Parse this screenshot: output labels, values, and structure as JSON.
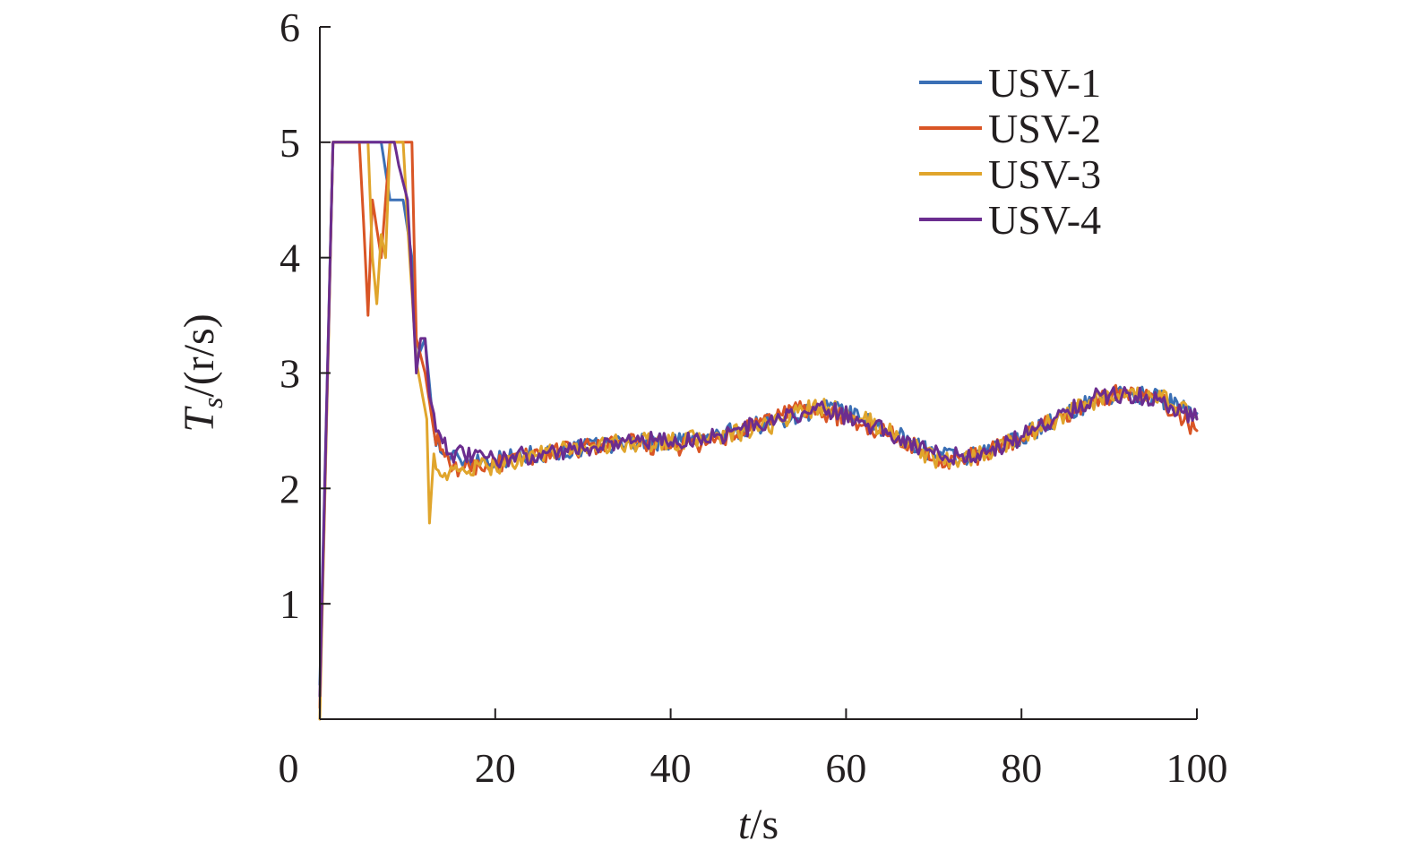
{
  "chart_data": {
    "type": "line",
    "title": "",
    "xlabel": {
      "var": "t",
      "unit": "/s"
    },
    "ylabel": {
      "var": "T",
      "sub": "s",
      "unit": "/(r/s)"
    },
    "xlim": [
      0,
      100
    ],
    "ylim": [
      0,
      6
    ],
    "xticks": [
      0,
      20,
      40,
      60,
      80,
      100
    ],
    "yticks": [
      1,
      2,
      3,
      4,
      5,
      6
    ],
    "x_origin_label": "0",
    "grid": false,
    "legend_position": "top-right",
    "series": [
      {
        "name": "USV-1",
        "color": "#3a6fb5",
        "points": [
          [
            0,
            0.3
          ],
          [
            1.5,
            5
          ],
          [
            7,
            5
          ],
          [
            8,
            4.5
          ],
          [
            9.5,
            4.5
          ],
          [
            10.5,
            4
          ],
          [
            11,
            3.1
          ],
          [
            12,
            3.3
          ],
          [
            13,
            2.5
          ],
          [
            14,
            2.3
          ],
          [
            16,
            2.25
          ],
          [
            20,
            2.25
          ],
          [
            25,
            2.3
          ],
          [
            30,
            2.35
          ],
          [
            35,
            2.4
          ],
          [
            40,
            2.4
          ],
          [
            45,
            2.45
          ],
          [
            50,
            2.55
          ],
          [
            55,
            2.65
          ],
          [
            58,
            2.7
          ],
          [
            62,
            2.6
          ],
          [
            66,
            2.45
          ],
          [
            70,
            2.3
          ],
          [
            73,
            2.25
          ],
          [
            76,
            2.3
          ],
          [
            80,
            2.45
          ],
          [
            84,
            2.6
          ],
          [
            88,
            2.75
          ],
          [
            92,
            2.82
          ],
          [
            95,
            2.8
          ],
          [
            100,
            2.65
          ]
        ]
      },
      {
        "name": "USV-2",
        "color": "#d95525",
        "points": [
          [
            0,
            0.1
          ],
          [
            1.5,
            5
          ],
          [
            4.5,
            5
          ],
          [
            5,
            4.3
          ],
          [
            5.5,
            3.5
          ],
          [
            6,
            4.5
          ],
          [
            7,
            4.0
          ],
          [
            8,
            5
          ],
          [
            10.5,
            5
          ],
          [
            11,
            3.3
          ],
          [
            12,
            3.0
          ],
          [
            13,
            2.5
          ],
          [
            15,
            2.15
          ],
          [
            17,
            2.2
          ],
          [
            20,
            2.2
          ],
          [
            25,
            2.3
          ],
          [
            30,
            2.35
          ],
          [
            35,
            2.4
          ],
          [
            40,
            2.35
          ],
          [
            45,
            2.4
          ],
          [
            50,
            2.55
          ],
          [
            54,
            2.7
          ],
          [
            58,
            2.65
          ],
          [
            62,
            2.55
          ],
          [
            66,
            2.45
          ],
          [
            70,
            2.25
          ],
          [
            73,
            2.25
          ],
          [
            76,
            2.3
          ],
          [
            80,
            2.45
          ],
          [
            84,
            2.6
          ],
          [
            88,
            2.75
          ],
          [
            92,
            2.85
          ],
          [
            96,
            2.75
          ],
          [
            100,
            2.5
          ]
        ]
      },
      {
        "name": "USV-3",
        "color": "#e0a52c",
        "points": [
          [
            0,
            0
          ],
          [
            1.5,
            5
          ],
          [
            5.5,
            5
          ],
          [
            6,
            4.0
          ],
          [
            6.5,
            3.6
          ],
          [
            7,
            4.2
          ],
          [
            7.5,
            4.0
          ],
          [
            8,
            5
          ],
          [
            9.5,
            5
          ],
          [
            10,
            4.3
          ],
          [
            11,
            3.1
          ],
          [
            12.2,
            2.6
          ],
          [
            12.5,
            1.7
          ],
          [
            13,
            2.3
          ],
          [
            14,
            2.1
          ],
          [
            16,
            2.15
          ],
          [
            20,
            2.2
          ],
          [
            25,
            2.3
          ],
          [
            30,
            2.35
          ],
          [
            35,
            2.4
          ],
          [
            40,
            2.4
          ],
          [
            45,
            2.45
          ],
          [
            50,
            2.5
          ],
          [
            55,
            2.68
          ],
          [
            58,
            2.7
          ],
          [
            62,
            2.6
          ],
          [
            66,
            2.45
          ],
          [
            70,
            2.25
          ],
          [
            73,
            2.25
          ],
          [
            76,
            2.3
          ],
          [
            80,
            2.45
          ],
          [
            84,
            2.6
          ],
          [
            88,
            2.75
          ],
          [
            92,
            2.8
          ],
          [
            96,
            2.8
          ],
          [
            100,
            2.6
          ]
        ]
      },
      {
        "name": "USV-4",
        "color": "#6b2d8f",
        "points": [
          [
            0,
            0.2
          ],
          [
            1.5,
            5
          ],
          [
            8.5,
            5
          ],
          [
            9,
            4.8
          ],
          [
            10,
            4.5
          ],
          [
            10.5,
            3.8
          ],
          [
            11,
            3.0
          ],
          [
            11.5,
            3.3
          ],
          [
            12,
            3.3
          ],
          [
            12.5,
            2.8
          ],
          [
            13.5,
            2.5
          ],
          [
            15,
            2.3
          ],
          [
            20,
            2.25
          ],
          [
            25,
            2.3
          ],
          [
            30,
            2.35
          ],
          [
            35,
            2.42
          ],
          [
            40,
            2.4
          ],
          [
            45,
            2.45
          ],
          [
            50,
            2.55
          ],
          [
            55,
            2.65
          ],
          [
            58,
            2.68
          ],
          [
            62,
            2.58
          ],
          [
            66,
            2.45
          ],
          [
            70,
            2.3
          ],
          [
            73,
            2.28
          ],
          [
            76,
            2.3
          ],
          [
            80,
            2.45
          ],
          [
            84,
            2.62
          ],
          [
            88,
            2.78
          ],
          [
            92,
            2.83
          ],
          [
            96,
            2.75
          ],
          [
            100,
            2.6
          ]
        ]
      }
    ]
  }
}
